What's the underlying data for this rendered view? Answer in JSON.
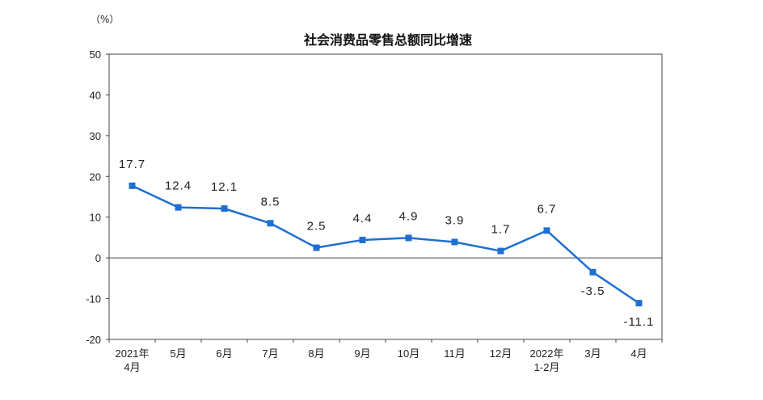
{
  "chart_data": {
    "type": "line",
    "title": "社会消费品零售总额同比增速",
    "unit": "（%）",
    "categories": [
      [
        "2021年",
        "4月"
      ],
      [
        "5月"
      ],
      [
        "6月"
      ],
      [
        "7月"
      ],
      [
        "8月"
      ],
      [
        "9月"
      ],
      [
        "10月"
      ],
      [
        "11月"
      ],
      [
        "12月"
      ],
      [
        "2022年",
        "1-2月"
      ],
      [
        "3月"
      ],
      [
        "4月"
      ]
    ],
    "values": [
      17.7,
      12.4,
      12.1,
      8.5,
      2.5,
      4.4,
      4.9,
      3.9,
      1.7,
      6.7,
      -3.5,
      -11.1
    ],
    "data_labels": [
      "17.7",
      "12.4",
      "12.1",
      "8.5",
      "2.5",
      "4.4",
      "4.9",
      "3.9",
      "1.7",
      "6.7",
      "-3.5",
      "-11.1"
    ],
    "ylim": [
      -20,
      50
    ],
    "yticks": [
      50,
      40,
      30,
      20,
      10,
      0,
      -10,
      -20
    ],
    "grid": false,
    "legend": "none",
    "line_color": "#1f6fd0"
  }
}
